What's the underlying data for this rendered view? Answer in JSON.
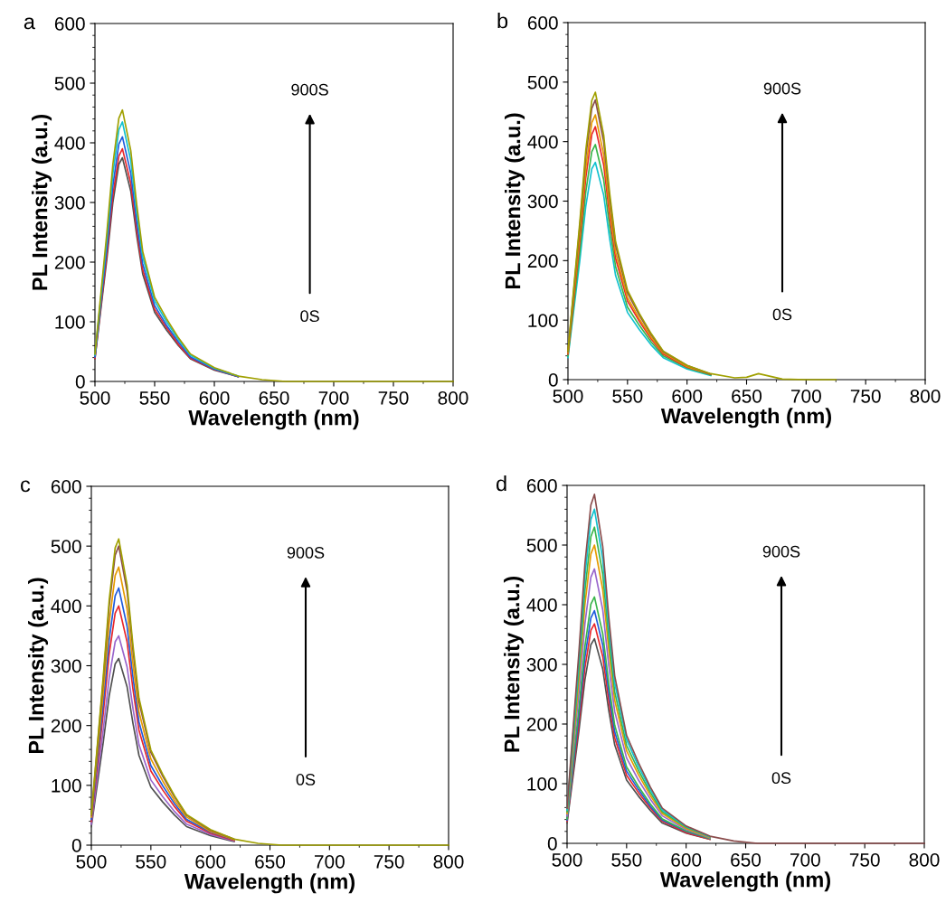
{
  "chart_data": [
    {
      "type": "line",
      "title": "a",
      "xlabel": "Wavelength (nm)",
      "ylabel": "PL Intensity (a.u.)",
      "xlim": [
        500,
        800
      ],
      "ylim": [
        0,
        600
      ],
      "xticks": [
        500,
        550,
        600,
        650,
        700,
        750,
        800
      ],
      "yticks": [
        0,
        100,
        200,
        300,
        400,
        500,
        600
      ],
      "grid": false,
      "legend": false,
      "annotations": [
        "900S",
        "0S"
      ],
      "x": [
        500,
        510,
        515,
        520,
        523,
        530,
        535,
        540,
        550,
        560,
        570,
        580,
        600,
        620,
        640,
        660,
        700,
        800
      ],
      "series": [
        {
          "color": "#505050",
          "values": [
            38,
            206,
            300,
            364,
            375,
            319,
            244,
            180,
            116,
            86,
            60,
            38,
            19,
            8,
            null,
            null,
            null,
            null
          ]
        },
        {
          "color": "#e8262a",
          "values": [
            39,
            215,
            312,
            378,
            390,
            332,
            254,
            187,
            121,
            90,
            62,
            39,
            20,
            8,
            null,
            null,
            null,
            null
          ]
        },
        {
          "color": "#1f5bdc",
          "values": [
            41,
            226,
            328,
            398,
            410,
            349,
            267,
            197,
            127,
            94,
            66,
            41,
            21,
            8,
            null,
            null,
            null,
            null
          ]
        },
        {
          "color": "#11c1cf",
          "values": [
            44,
            239,
            348,
            422,
            435,
            370,
            283,
            209,
            135,
            100,
            70,
            44,
            22,
            9,
            null,
            null,
            null,
            null
          ]
        },
        {
          "color": "#a0a000",
          "values": [
            46,
            250,
            364,
            441,
            455,
            387,
            296,
            218,
            141,
            105,
            73,
            46,
            23,
            9,
            3,
            0,
            0,
            0
          ]
        }
      ]
    },
    {
      "type": "line",
      "title": "b",
      "xlabel": "Wavelength (nm)",
      "ylabel": "PL Intensity (a.u.)",
      "xlim": [
        500,
        800
      ],
      "ylim": [
        0,
        600
      ],
      "xticks": [
        500,
        550,
        600,
        650,
        700,
        750,
        800
      ],
      "yticks": [
        0,
        100,
        200,
        300,
        400,
        500,
        600
      ],
      "grid": false,
      "legend": false,
      "annotations": [
        "900S",
        "0S"
      ],
      "x": [
        500,
        510,
        515,
        520,
        523,
        530,
        535,
        540,
        550,
        560,
        570,
        580,
        600,
        620,
        640,
        650,
        660,
        680,
        700,
        725
      ],
      "series": [
        {
          "color": "#11c1cf",
          "values": [
            37,
            201,
            292,
            354,
            365,
            310,
            237,
            175,
            113,
            84,
            58,
            37,
            18,
            7,
            null,
            null,
            null,
            null,
            null,
            null
          ]
        },
        {
          "color": "#3ab54a",
          "values": [
            40,
            217,
            316,
            383,
            395,
            336,
            257,
            190,
            122,
            91,
            63,
            40,
            20,
            8,
            null,
            null,
            null,
            null,
            null,
            null
          ]
        },
        {
          "color": "#e8262a",
          "values": [
            43,
            234,
            340,
            412,
            425,
            361,
            276,
            204,
            132,
            98,
            68,
            43,
            21,
            9,
            null,
            null,
            null,
            null,
            null,
            null
          ]
        },
        {
          "color": "#e69a00",
          "values": [
            45,
            245,
            356,
            432,
            445,
            378,
            289,
            214,
            138,
            102,
            71,
            45,
            22,
            9,
            null,
            null,
            null,
            null,
            null,
            null
          ]
        },
        {
          "color": "#8a4c4c",
          "values": [
            47,
            259,
            376,
            456,
            470,
            400,
            306,
            226,
            146,
            108,
            75,
            47,
            24,
            9,
            null,
            null,
            null,
            null,
            null,
            null
          ]
        },
        {
          "color": "#a0a000",
          "values": [
            48,
            266,
            386,
            469,
            483,
            411,
            314,
            232,
            150,
            111,
            77,
            48,
            24,
            10,
            3,
            4,
            10,
            1,
            0,
            0
          ]
        }
      ]
    },
    {
      "type": "line",
      "title": "c",
      "xlabel": "Wavelength (nm)",
      "ylabel": "PL Intensity (a.u.)",
      "xlim": [
        500,
        800
      ],
      "ylim": [
        0,
        600
      ],
      "xticks": [
        500,
        550,
        600,
        650,
        700,
        750,
        800
      ],
      "yticks": [
        0,
        100,
        200,
        300,
        400,
        500,
        600
      ],
      "grid": false,
      "legend": false,
      "annotations": [
        "900S",
        "0S"
      ],
      "x": [
        500,
        510,
        515,
        520,
        523,
        530,
        535,
        540,
        550,
        560,
        570,
        580,
        600,
        620,
        640,
        660,
        700,
        800
      ],
      "series": [
        {
          "color": "#505050",
          "values": [
            31,
            172,
            250,
            303,
            312,
            265,
            203,
            150,
            97,
            72,
            50,
            31,
            16,
            6,
            null,
            null,
            null,
            null
          ]
        },
        {
          "color": "#9966cc",
          "values": [
            35,
            193,
            280,
            340,
            350,
            298,
            228,
            168,
            109,
            81,
            56,
            35,
            18,
            7,
            null,
            null,
            null,
            null
          ]
        },
        {
          "color": "#e8262a",
          "values": [
            40,
            220,
            320,
            388,
            400,
            340,
            260,
            192,
            124,
            92,
            64,
            40,
            20,
            8,
            null,
            null,
            null,
            null
          ]
        },
        {
          "color": "#1f5bdc",
          "values": [
            43,
            237,
            344,
            417,
            430,
            366,
            280,
            206,
            133,
            99,
            69,
            43,
            22,
            9,
            null,
            null,
            null,
            null
          ]
        },
        {
          "color": "#e69a00",
          "values": [
            47,
            256,
            372,
            451,
            465,
            395,
            302,
            223,
            144,
            107,
            74,
            47,
            23,
            9,
            null,
            null,
            null,
            null
          ]
        },
        {
          "color": "#8a4c4c",
          "values": [
            50,
            275,
            400,
            485,
            500,
            425,
            325,
            240,
            155,
            115,
            80,
            50,
            25,
            10,
            null,
            null,
            null,
            null
          ]
        },
        {
          "color": "#a0a000",
          "values": [
            51,
            282,
            410,
            497,
            512,
            435,
            333,
            246,
            159,
            118,
            82,
            51,
            26,
            10,
            3,
            0,
            0,
            0
          ]
        }
      ]
    },
    {
      "type": "line",
      "title": "d",
      "xlabel": "Wavelength (nm)",
      "ylabel": "PL Intensity (a.u.)",
      "xlim": [
        500,
        800
      ],
      "ylim": [
        0,
        600
      ],
      "xticks": [
        500,
        550,
        600,
        650,
        700,
        750,
        800
      ],
      "yticks": [
        0,
        100,
        200,
        300,
        400,
        500,
        600
      ],
      "grid": false,
      "legend": false,
      "annotations": [
        "900S",
        "0S"
      ],
      "x": [
        500,
        510,
        515,
        520,
        523,
        530,
        535,
        540,
        550,
        560,
        570,
        580,
        600,
        620,
        640,
        660,
        700,
        800
      ],
      "series": [
        {
          "color": "#505050",
          "values": [
            34,
            189,
            274,
            333,
            343,
            292,
            223,
            165,
            106,
            79,
            55,
            34,
            17,
            7,
            null,
            null,
            null,
            null
          ]
        },
        {
          "color": "#e8262a",
          "values": [
            37,
            202,
            294,
            357,
            368,
            313,
            239,
            177,
            114,
            85,
            59,
            37,
            18,
            7,
            null,
            null,
            null,
            null
          ]
        },
        {
          "color": "#1f5bdc",
          "values": [
            39,
            215,
            312,
            378,
            390,
            332,
            254,
            187,
            121,
            90,
            62,
            39,
            20,
            8,
            null,
            null,
            null,
            null
          ]
        },
        {
          "color": "#3ab54a",
          "values": [
            41,
            227,
            330,
            401,
            413,
            351,
            268,
            198,
            128,
            95,
            66,
            41,
            21,
            8,
            null,
            null,
            null,
            null
          ]
        },
        {
          "color": "#9966cc",
          "values": [
            46,
            253,
            368,
            446,
            460,
            391,
            299,
            221,
            143,
            106,
            74,
            46,
            23,
            9,
            null,
            null,
            null,
            null
          ]
        },
        {
          "color": "#e69a00",
          "values": [
            50,
            275,
            400,
            485,
            500,
            425,
            325,
            240,
            155,
            115,
            80,
            50,
            25,
            10,
            null,
            null,
            null,
            null
          ]
        },
        {
          "color": "#3ab54a",
          "values": [
            53,
            292,
            424,
            514,
            530,
            451,
            345,
            254,
            164,
            122,
            85,
            53,
            27,
            11,
            null,
            null,
            null,
            null
          ]
        },
        {
          "color": "#11c1cf",
          "values": [
            56,
            308,
            448,
            543,
            560,
            476,
            364,
            269,
            174,
            129,
            90,
            56,
            28,
            11,
            null,
            null,
            null,
            null
          ]
        },
        {
          "color": "#8a4c4c",
          "values": [
            59,
            322,
            468,
            567,
            585,
            497,
            380,
            281,
            181,
            135,
            94,
            59,
            29,
            12,
            4,
            0,
            0,
            0
          ]
        }
      ]
    }
  ]
}
